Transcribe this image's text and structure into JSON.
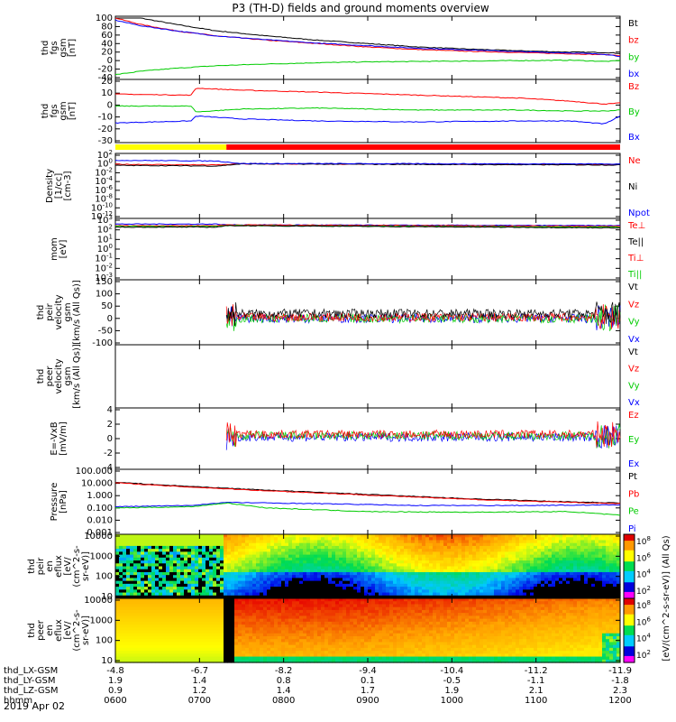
{
  "title": "P3 (TH-D) fields and ground moments overview",
  "date_label": "2019 Apr 02",
  "chart_data": [
    {
      "id": "fgs_gsm",
      "type": "line",
      "ylabel": [
        "thd",
        "fgs",
        "gsm",
        "[nT]"
      ],
      "ylim": [
        -40,
        100
      ],
      "yticks": [
        "100",
        "80",
        "60",
        "40",
        "20",
        "0",
        "-20",
        "-40"
      ],
      "legend": [
        {
          "name": "Bt",
          "color": "#000000"
        },
        {
          "name": "bz",
          "color": "#ff0000"
        },
        {
          "name": "by",
          "color": "#00cc00"
        },
        {
          "name": "bx",
          "color": "#0000ff"
        }
      ],
      "series": [
        {
          "name": "Bt",
          "color": "#000000",
          "x": [
            0,
            0.05,
            0.12,
            0.2,
            0.3,
            0.4,
            0.5,
            0.6,
            0.7,
            0.8,
            0.9,
            0.97,
            1
          ],
          "values": [
            110,
            100,
            85,
            70,
            58,
            48,
            40,
            32,
            27,
            23,
            20,
            19,
            17
          ]
        },
        {
          "name": "bz",
          "color": "#ff0000",
          "x": [
            0,
            0.05,
            0.12,
            0.2,
            0.3,
            0.4,
            0.5,
            0.6,
            0.7,
            0.8,
            0.9,
            0.97,
            1
          ],
          "values": [
            100,
            85,
            70,
            58,
            48,
            40,
            32,
            26,
            22,
            19,
            16,
            14,
            12
          ]
        },
        {
          "name": "by",
          "color": "#00cc00",
          "x": [
            0,
            0.05,
            0.12,
            0.2,
            0.3,
            0.4,
            0.5,
            0.6,
            0.7,
            0.8,
            0.9,
            0.97,
            1
          ],
          "values": [
            -33,
            -25,
            -18,
            -12,
            -8,
            -5,
            -3,
            -2,
            -1,
            0,
            1,
            -2,
            0
          ]
        },
        {
          "name": "bx",
          "color": "#0000ff",
          "x": [
            0,
            0.05,
            0.12,
            0.2,
            0.3,
            0.4,
            0.5,
            0.6,
            0.7,
            0.8,
            0.9,
            0.97,
            1
          ],
          "values": [
            95,
            82,
            70,
            58,
            49,
            41,
            35,
            29,
            25,
            21,
            18,
            15,
            10
          ]
        }
      ]
    },
    {
      "id": "fgs_sm",
      "type": "line",
      "ylabel": [
        "thd",
        "fgs",
        "gsm",
        "[nT]"
      ],
      "ylim": [
        -35,
        25
      ],
      "yticks": [
        "20",
        "10",
        "0",
        "-10",
        "-20",
        "-30"
      ],
      "legend": [
        {
          "name": "Bz",
          "color": "#ff0000"
        },
        {
          "name": "By",
          "color": "#00cc00"
        },
        {
          "name": "Bx",
          "color": "#0000ff"
        }
      ],
      "series": [
        {
          "name": "Bz",
          "color": "#ff0000",
          "x": [
            0,
            0.15,
            0.16,
            0.25,
            0.4,
            0.6,
            0.8,
            0.9,
            0.97,
            1
          ],
          "values": [
            12,
            11,
            18,
            16,
            14,
            11,
            8,
            5,
            2,
            3
          ]
        },
        {
          "name": "By",
          "color": "#00cc00",
          "x": [
            0,
            0.15,
            0.16,
            0.25,
            0.4,
            0.6,
            0.8,
            0.9,
            0.97,
            1
          ],
          "values": [
            0,
            0,
            -6,
            -3,
            -2,
            -4,
            -4,
            -5,
            -5,
            -4
          ]
        },
        {
          "name": "Bx",
          "color": "#0000ff",
          "x": [
            0,
            0.15,
            0.16,
            0.25,
            0.4,
            0.6,
            0.8,
            0.9,
            0.97,
            1
          ],
          "values": [
            -17,
            -15,
            -10,
            -13,
            -15,
            -16,
            -15,
            -15,
            -18,
            -10
          ]
        }
      ]
    },
    {
      "id": "density",
      "type": "line",
      "ylabel": [
        "Density",
        "[1/cc]",
        "[cm-3]"
      ],
      "yscale": "log",
      "ylim": [
        -14,
        3
      ],
      "yticks": [
        "10^2",
        "10^0",
        "10^-2",
        "10^-4",
        "10^-6",
        "10^-8",
        "10^-10",
        "10^-12"
      ],
      "legend": [
        {
          "name": "Ne",
          "color": "#ff0000"
        },
        {
          "name": "Ni",
          "color": "#000000"
        },
        {
          "name": "Npot",
          "color": "#0000ff"
        }
      ],
      "series": [
        {
          "name": "Ne",
          "color": "#ff0000",
          "x": [
            0,
            0.2,
            0.25,
            1
          ],
          "values": [
            0.5,
            0.3,
            0.6,
            0.4
          ]
        },
        {
          "name": "Ni",
          "color": "#000000",
          "x": [
            0,
            0.2,
            0.25,
            1
          ],
          "values": [
            0.2,
            0,
            0.6,
            0.3
          ]
        },
        {
          "name": "Npot",
          "color": "#0000ff",
          "x": [
            0,
            0.2,
            0.25,
            1
          ],
          "values": [
            1.6,
            1.4,
            0.7,
            0.6
          ]
        }
      ]
    },
    {
      "id": "temperature",
      "type": "line",
      "ylabel": [
        "mom",
        "[eV]"
      ],
      "yscale": "log",
      "ylim": [
        -4,
        3.5
      ],
      "yticks": [
        "10^3",
        "10^2",
        "10^1",
        "10^0",
        "10^-1",
        "10^-2",
        "10^-3"
      ],
      "legend": [
        {
          "name": "Te⊥",
          "color": "#ff0000"
        },
        {
          "name": "Te||",
          "color": "#000000"
        },
        {
          "name": "Ti⊥",
          "color": "#ff0000"
        },
        {
          "name": "Ti||",
          "color": "#00cc00"
        }
      ],
      "series": [
        {
          "name": "Ti",
          "color": "#0000ff",
          "x": [
            0,
            0.2,
            0.22,
            1
          ],
          "values": [
            3.0,
            3.0,
            2.9,
            2.8
          ]
        },
        {
          "name": "Te",
          "color": "#ff0000",
          "x": [
            0,
            0.2,
            0.22,
            1
          ],
          "values": [
            2.8,
            2.8,
            2.9,
            2.7
          ]
        },
        {
          "name": "Ti||",
          "color": "#00cc00",
          "x": [
            0,
            0.2,
            0.22,
            1
          ],
          "values": [
            2.7,
            2.7,
            2.8,
            2.6
          ]
        },
        {
          "name": "Te||",
          "color": "#000000",
          "x": [
            0,
            0.2,
            0.22,
            1
          ],
          "values": [
            2.6,
            2.6,
            2.8,
            2.5
          ]
        }
      ]
    },
    {
      "id": "velocity_peir",
      "type": "line",
      "ylabel": [
        "thd",
        "peir",
        "velocity",
        "gsm",
        "[km/s (All Qs)]"
      ],
      "ylim": [
        -100,
        150
      ],
      "yticks": [
        "150",
        "100",
        "50",
        "0",
        "-50",
        "-100"
      ],
      "legend": [
        {
          "name": "Vt",
          "color": "#000000"
        },
        {
          "name": "Vz",
          "color": "#ff0000"
        },
        {
          "name": "Vy",
          "color": "#00cc00"
        },
        {
          "name": "Vx",
          "color": "#0000ff"
        }
      ],
      "data_start": 0.22
    },
    {
      "id": "velocity_peer",
      "type": "line",
      "ylabel": [
        "thd",
        "peer",
        "velocity",
        "gsm",
        "[km/s (All Qs)]"
      ],
      "legend": [
        {
          "name": "Vt",
          "color": "#000000"
        },
        {
          "name": "Vz",
          "color": "#ff0000"
        },
        {
          "name": "Vy",
          "color": "#00cc00"
        },
        {
          "name": "Vx",
          "color": "#0000ff"
        }
      ]
    },
    {
      "id": "efield",
      "type": "line",
      "ylabel": [
        "E=-VxB",
        "[mV/m]"
      ],
      "ylim": [
        -4,
        4
      ],
      "yticks": [
        "4",
        "2",
        "0",
        "-2",
        "-4"
      ],
      "legend": [
        {
          "name": "Ez",
          "color": "#ff0000"
        },
        {
          "name": "Ey",
          "color": "#00cc00"
        },
        {
          "name": "Ex",
          "color": "#0000ff"
        }
      ],
      "data_start": 0.22
    },
    {
      "id": "pressure",
      "type": "line",
      "ylabel": [
        "Pressure",
        "[nPa]"
      ],
      "yscale": "log",
      "ylim": [
        -3,
        2
      ],
      "yticks": [
        "100.000",
        "10.000",
        "1.000",
        "0.100",
        "0.010",
        "0.001"
      ],
      "legend": [
        {
          "name": "Pt",
          "color": "#000000"
        },
        {
          "name": "Pb",
          "color": "#ff0000"
        },
        {
          "name": "Pe",
          "color": "#00cc00"
        },
        {
          "name": "Pi",
          "color": "#0000ff"
        }
      ],
      "series": [
        {
          "name": "Pt",
          "color": "#000000",
          "x": [
            0,
            0.1,
            0.3,
            0.5,
            0.7,
            0.9,
            1
          ],
          "values": [
            1.1,
            0.85,
            0.45,
            0.1,
            -0.25,
            -0.5,
            -0.6
          ]
        },
        {
          "name": "Pb",
          "color": "#ff0000",
          "x": [
            0,
            0.1,
            0.3,
            0.5,
            0.7,
            0.9,
            1
          ],
          "values": [
            1.05,
            0.8,
            0.4,
            0.05,
            -0.3,
            -0.55,
            -0.65
          ]
        },
        {
          "name": "Pi",
          "color": "#0000ff",
          "x": [
            0,
            0.15,
            0.22,
            0.4,
            0.6,
            0.8,
            1
          ],
          "values": [
            -0.9,
            -0.8,
            -0.55,
            -0.65,
            -0.8,
            -0.8,
            -0.75
          ]
        },
        {
          "name": "Pe",
          "color": "#00cc00",
          "x": [
            0,
            0.15,
            0.22,
            0.3,
            0.5,
            0.7,
            0.9,
            1
          ],
          "values": [
            -1.0,
            -0.9,
            -0.6,
            -1.0,
            -1.3,
            -1.35,
            -1.3,
            -1.6
          ]
        }
      ]
    },
    {
      "id": "peir_eflux",
      "type": "heatmap",
      "ylabel": [
        "thd",
        "peir",
        "en",
        "eflux",
        "[eV/",
        "(cm^2-s-",
        "sr-eV)]"
      ],
      "yscale": "log",
      "yticks": [
        "10000",
        "1000",
        "100",
        "10"
      ]
    },
    {
      "id": "peer_eflux",
      "type": "heatmap",
      "ylabel": [
        "thd",
        "peer",
        "en",
        "eflux",
        "[eV/",
        "(cm^2-s-",
        "sr-eV)]"
      ],
      "yscale": "log",
      "yticks": [
        "10000",
        "1000",
        "100",
        "10"
      ]
    }
  ],
  "colorbar": {
    "label": "[eV/(cm^2-s-sr-eV)] (All Qs)",
    "top_ticks": [
      "10^8",
      "10^6",
      "10^4",
      "10^2"
    ],
    "bottom_ticks": [
      "10^8",
      "10^6",
      "10^4",
      "10^2"
    ]
  },
  "bar_strip": {
    "colors": [
      "#ffff00",
      "#ff0000"
    ],
    "split": 0.22
  },
  "x_axis": {
    "rows": [
      {
        "label": "thd_LX-GSM",
        "values": [
          "-4.8",
          "-6.7",
          "-8.2",
          "-9.4",
          "-10.4",
          "-11.2",
          "-11.9"
        ]
      },
      {
        "label": "thd_LY-GSM",
        "values": [
          "1.9",
          "1.4",
          "0.8",
          "0.1",
          "-0.5",
          "-1.1",
          "-1.8"
        ]
      },
      {
        "label": "thd_LZ-GSM",
        "values": [
          "0.9",
          "1.2",
          "1.4",
          "1.7",
          "1.9",
          "2.1",
          "2.3"
        ]
      },
      {
        "label": "hhmm",
        "values": [
          "0600",
          "0700",
          "0800",
          "0900",
          "1000",
          "1100",
          "1200"
        ]
      }
    ]
  }
}
